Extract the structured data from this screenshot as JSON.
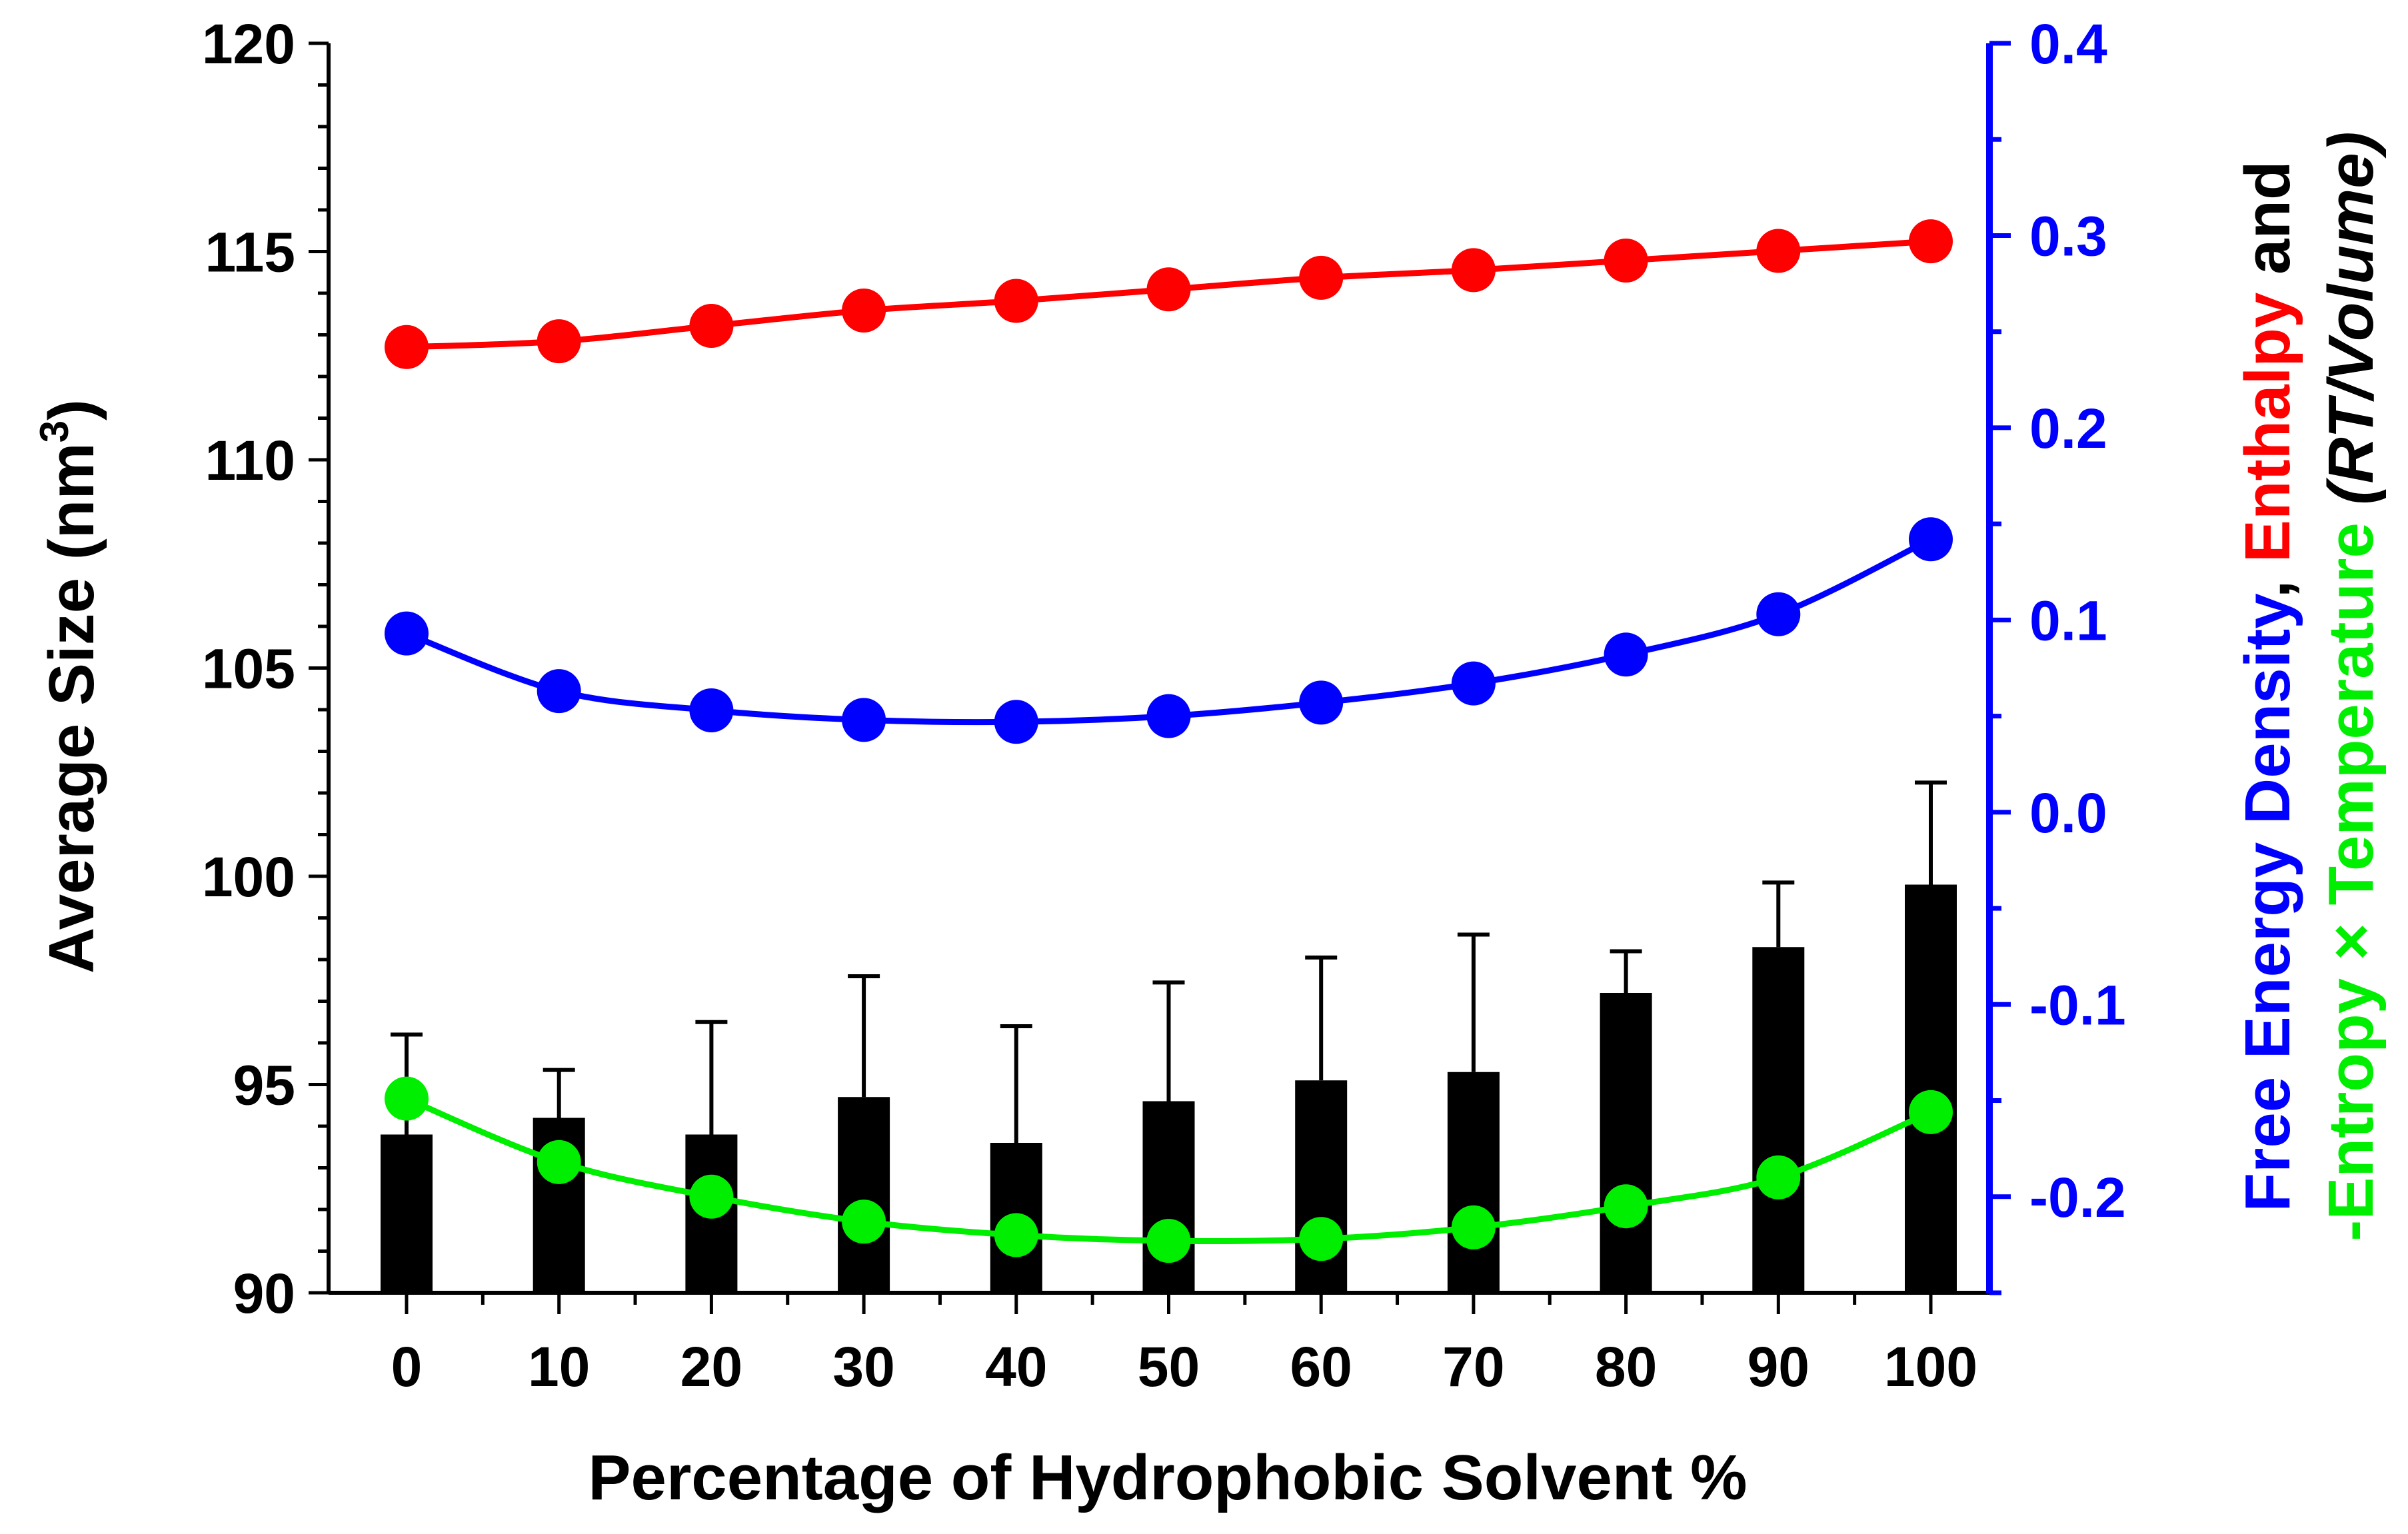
{
  "chart_data": {
    "type": "bar+line",
    "x": [
      0,
      10,
      20,
      30,
      40,
      50,
      60,
      70,
      80,
      90,
      100
    ],
    "xlabel": "Percentage of Hydrophobic Solvent %",
    "left_axis": {
      "label_main": "Average Size (nm",
      "label_sup": "3",
      "label_close": ")",
      "ylim": [
        90,
        120
      ],
      "ticks": [
        "90",
        "95",
        "100",
        "105",
        "110",
        "115",
        "120"
      ]
    },
    "right_axis": {
      "color": "#0000ff",
      "ylim": [
        -0.25,
        0.4
      ],
      "ticks": [
        "-0.2",
        "-0.1",
        "0.0",
        "0.1",
        "0.2",
        "0.3",
        "0.4"
      ],
      "label_line1": [
        {
          "text": "Free Energy Density",
          "color": "#0000ff",
          "italic": false
        },
        {
          "text": ", ",
          "color": "#000000",
          "italic": false
        },
        {
          "text": "Enthalpy",
          "color": "#ff0000",
          "italic": false
        },
        {
          "text": " and",
          "color": "#000000",
          "italic": false
        }
      ],
      "label_line2": [
        {
          "text": "-Entropy × Temperature",
          "color": "#00ee00",
          "italic": false
        },
        {
          "text": " (RT/Volume)",
          "color": "#000000",
          "italic": true
        }
      ]
    },
    "series": [
      {
        "name": "Average Size",
        "type": "bar",
        "axis": "left",
        "color": "#000000",
        "values": [
          93.8,
          94.2,
          93.8,
          94.7,
          93.6,
          94.6,
          95.1,
          95.3,
          97.2,
          98.3,
          99.8
        ],
        "error_upper": [
          96.2,
          95.35,
          96.5,
          97.6,
          96.4,
          97.45,
          98.05,
          98.6,
          98.2,
          99.85,
          102.25
        ]
      },
      {
        "name": "Enthalpy",
        "type": "line",
        "axis": "right",
        "color": "#ff0000",
        "values": [
          0.242,
          0.245,
          0.253,
          0.261,
          0.266,
          0.272,
          0.278,
          0.282,
          0.287,
          0.292,
          0.297
        ]
      },
      {
        "name": "Free Energy Density",
        "type": "line",
        "axis": "right",
        "color": "#0000ff",
        "values": [
          0.093,
          0.063,
          0.053,
          0.048,
          0.047,
          0.05,
          0.057,
          0.067,
          0.082,
          0.103,
          0.142
        ]
      },
      {
        "name": "-Entropy × Temperature",
        "type": "line",
        "axis": "right",
        "color": "#00ee00",
        "values": [
          -0.149,
          -0.182,
          -0.2,
          -0.213,
          -0.22,
          -0.223,
          -0.222,
          -0.216,
          -0.205,
          -0.19,
          -0.156
        ]
      }
    ]
  }
}
